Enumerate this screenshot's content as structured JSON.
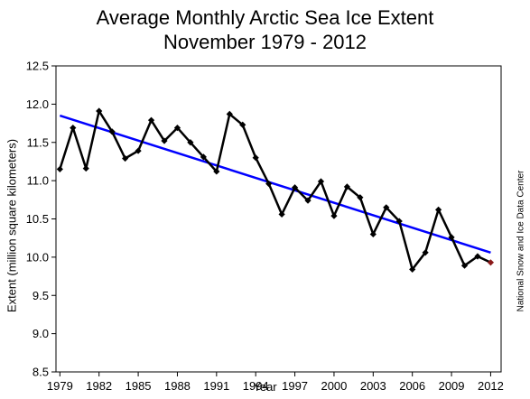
{
  "chart_data": {
    "type": "line",
    "title_line1": "Average Monthly Arctic Sea Ice Extent",
    "title_line2": "November 1979 - 2012",
    "xlabel": "Year",
    "ylabel": "Extent (million square kilometers)",
    "credit": "National Snow and Ice Data Center",
    "xlim": [
      1978.7,
      2012.8
    ],
    "ylim": [
      8.5,
      12.5
    ],
    "x_ticks": [
      1979,
      1982,
      1985,
      1988,
      1991,
      1994,
      1997,
      2000,
      2003,
      2006,
      2009,
      2012
    ],
    "y_ticks": [
      8.5,
      9.0,
      9.5,
      10.0,
      10.5,
      11.0,
      11.5,
      12.0,
      12.5
    ],
    "y_tick_labels": [
      "8.5",
      "9.0",
      "9.5",
      "10.0",
      "10.5",
      "11.0",
      "11.5",
      "12.0",
      "12.5"
    ],
    "series": [
      {
        "x": [
          1979,
          1980,
          1981,
          1982,
          1983,
          1984,
          1985,
          1986,
          1987,
          1988,
          1989,
          1990,
          1991,
          1992,
          1993,
          1994,
          1995,
          1996,
          1997,
          1998,
          1999,
          2000,
          2001,
          2002,
          2003,
          2004,
          2005,
          2006,
          2007,
          2008,
          2009,
          2010,
          2011,
          2012
        ],
        "values": [
          11.15,
          11.69,
          11.16,
          11.91,
          11.64,
          11.29,
          11.39,
          11.79,
          11.52,
          11.69,
          11.5,
          11.31,
          11.12,
          11.87,
          11.73,
          11.3,
          10.96,
          10.56,
          10.91,
          10.74,
          10.99,
          10.54,
          10.92,
          10.78,
          10.3,
          10.65,
          10.47,
          9.84,
          10.06,
          10.62,
          10.26,
          9.89,
          10.01,
          9.93
        ],
        "color": "#000000",
        "last_point_color": "#8b1a1a"
      },
      {
        "type": "trend",
        "x": [
          1979,
          2012
        ],
        "values": [
          11.85,
          10.06
        ],
        "color": "#0000ff"
      }
    ]
  }
}
